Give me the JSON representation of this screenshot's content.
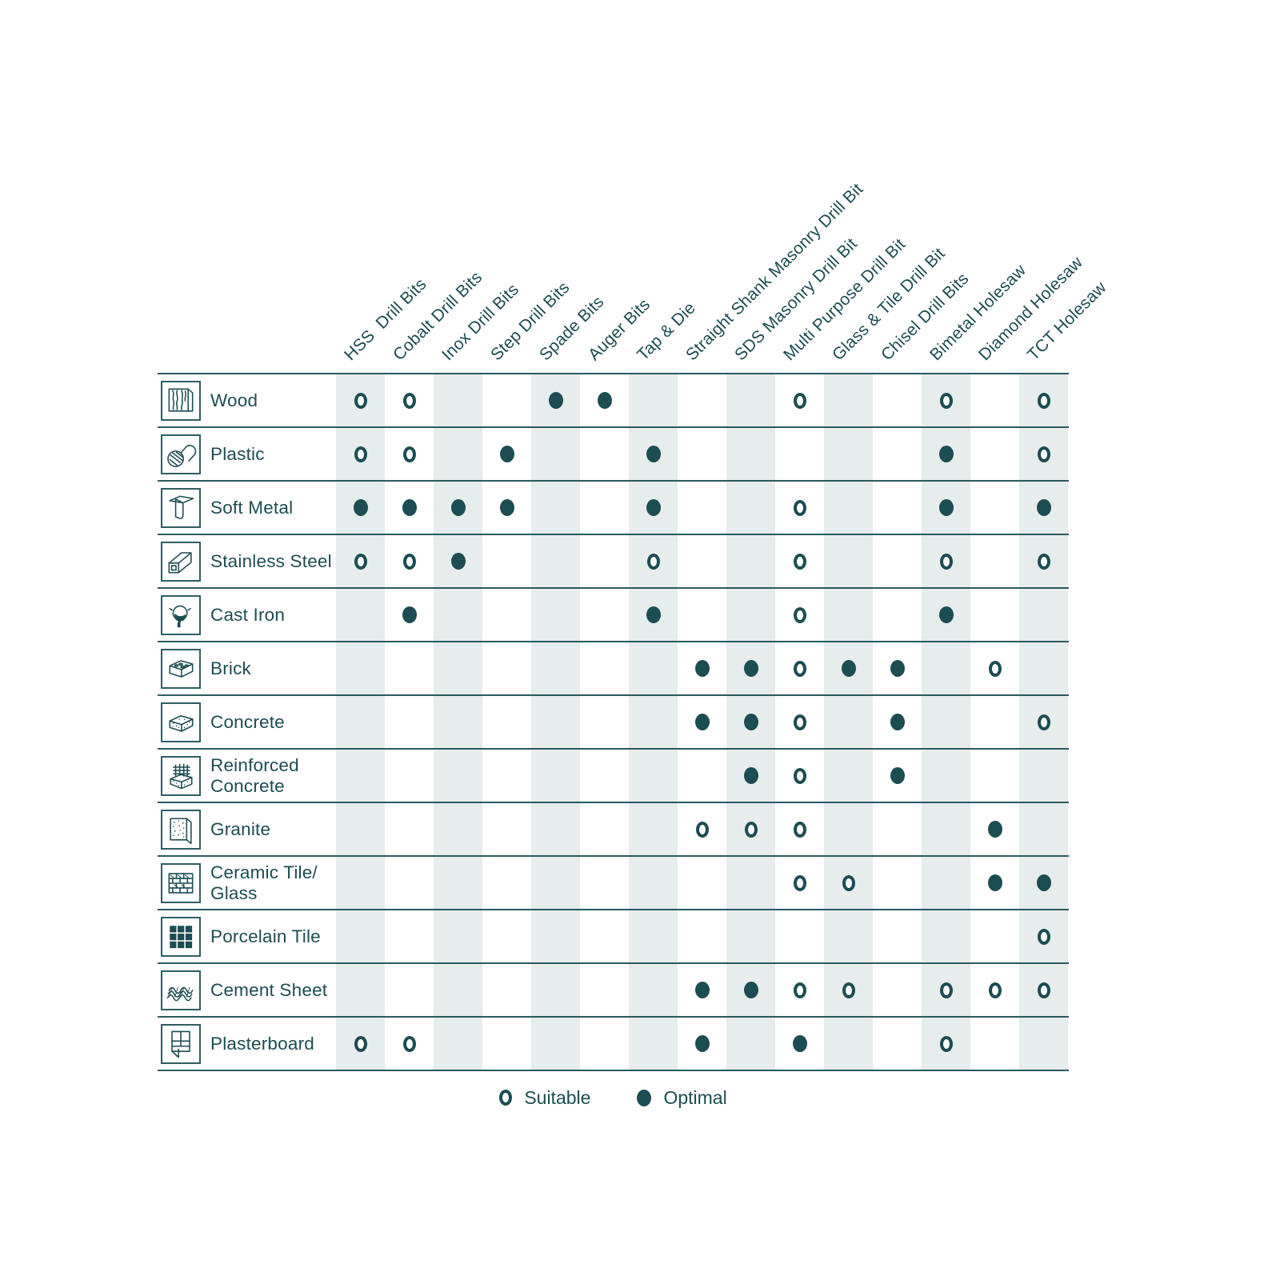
{
  "legend": {
    "suitable_label": "Suitable",
    "optimal_label": "Optimal"
  },
  "colors": {
    "ink": "#1B4D53",
    "grid_line": "#2A5A60",
    "column_band": "#E7ECEC",
    "background": "#FFFFFF"
  },
  "chart_data": {
    "type": "table",
    "legend_position": "bottom",
    "marker_values": {
      "suitable": "hollow-circle",
      "optimal": "filled-circle"
    },
    "columns": [
      "HSS  Drill Bits",
      "Cobalt Drill Bits",
      "Inox Drill Bits",
      "Step Drill Bits",
      "Spade Bits",
      "Auger Bits",
      "Tap & Die",
      "Straight Shank Masonry Drill Bit",
      "SDS Masonry Drill Bit",
      "Multi Purpose Drill Bit",
      "Glass & Tile Drill Bit",
      "Chisel Drill Bits",
      "Bimetal Holesaw",
      "Diamond Holesaw",
      "TCT Holesaw"
    ],
    "rows": [
      {
        "label": "Wood",
        "icon": "wood-icon",
        "cells": [
          "suitable",
          "suitable",
          "",
          "",
          "optimal",
          "optimal",
          "",
          "",
          "",
          "suitable",
          "",
          "",
          "suitable",
          "",
          "suitable"
        ]
      },
      {
        "label": "Plastic",
        "icon": "plastic-icon",
        "cells": [
          "suitable",
          "suitable",
          "",
          "optimal",
          "",
          "",
          "optimal",
          "",
          "",
          "",
          "",
          "",
          "optimal",
          "",
          "suitable"
        ]
      },
      {
        "label": "Soft Metal",
        "icon": "soft-metal-icon",
        "cells": [
          "optimal",
          "optimal",
          "optimal",
          "optimal",
          "",
          "",
          "optimal",
          "",
          "",
          "suitable",
          "",
          "",
          "optimal",
          "",
          "optimal"
        ]
      },
      {
        "label": "Stainless Steel",
        "icon": "stainless-steel-icon",
        "cells": [
          "suitable",
          "suitable",
          "optimal",
          "",
          "",
          "",
          "suitable",
          "",
          "",
          "suitable",
          "",
          "",
          "suitable",
          "",
          "suitable"
        ]
      },
      {
        "label": "Cast Iron",
        "icon": "cast-iron-icon",
        "cells": [
          "",
          "optimal",
          "",
          "",
          "",
          "",
          "optimal",
          "",
          "",
          "suitable",
          "",
          "",
          "optimal",
          "",
          ""
        ]
      },
      {
        "label": "Brick",
        "icon": "brick-icon",
        "cells": [
          "",
          "",
          "",
          "",
          "",
          "",
          "",
          "optimal",
          "optimal",
          "suitable",
          "optimal",
          "optimal",
          "",
          "suitable",
          ""
        ]
      },
      {
        "label": "Concrete",
        "icon": "concrete-icon",
        "cells": [
          "",
          "",
          "",
          "",
          "",
          "",
          "",
          "optimal",
          "optimal",
          "suitable",
          "",
          "optimal",
          "",
          "",
          "suitable"
        ]
      },
      {
        "label": "Reinforced Concrete",
        "icon": "reinforced-concrete-icon",
        "cells": [
          "",
          "",
          "",
          "",
          "",
          "",
          "",
          "",
          "optimal",
          "suitable",
          "",
          "optimal",
          "",
          "",
          ""
        ]
      },
      {
        "label": "Granite",
        "icon": "granite-icon",
        "cells": [
          "",
          "",
          "",
          "",
          "",
          "",
          "",
          "suitable",
          "suitable",
          "suitable",
          "",
          "",
          "",
          "optimal",
          ""
        ]
      },
      {
        "label": "Ceramic Tile/ Glass",
        "icon": "ceramic-tile-glass-icon",
        "cells": [
          "",
          "",
          "",
          "",
          "",
          "",
          "",
          "",
          "",
          "suitable",
          "suitable",
          "",
          "",
          "optimal",
          "optimal"
        ]
      },
      {
        "label": "Porcelain Tile",
        "icon": "porcelain-tile-icon",
        "cells": [
          "",
          "",
          "",
          "",
          "",
          "",
          "",
          "",
          "",
          "",
          "",
          "",
          "",
          "",
          "suitable"
        ]
      },
      {
        "label": "Cement Sheet",
        "icon": "cement-sheet-icon",
        "cells": [
          "",
          "",
          "",
          "",
          "",
          "",
          "",
          "optimal",
          "optimal",
          "suitable",
          "suitable",
          "",
          "suitable",
          "suitable",
          "suitable"
        ]
      },
      {
        "label": "Plasterboard",
        "icon": "plasterboard-icon",
        "cells": [
          "suitable",
          "suitable",
          "",
          "",
          "",
          "",
          "",
          "optimal",
          "",
          "optimal",
          "",
          "",
          "suitable",
          "",
          ""
        ]
      }
    ]
  }
}
